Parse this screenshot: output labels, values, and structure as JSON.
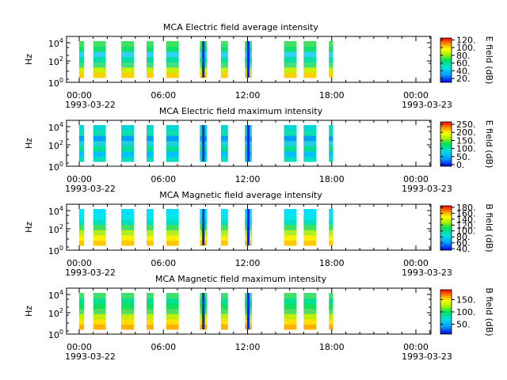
{
  "chart_data": [
    {
      "type": "heatmap",
      "title": "MCA  Electric field average intensity",
      "ylabel": "Hz",
      "colorbar_label": "E field (dB)",
      "colorbar_ticks": [
        "20.",
        "40.",
        "60.",
        "80.",
        "100.",
        "120."
      ],
      "colorbar_range": [
        10,
        125
      ],
      "y_ticks": [
        "10^4",
        "10^2",
        "10^0"
      ],
      "x_ticks": [
        {
          "time": "00:00",
          "date": "1993-03-22"
        },
        {
          "time": "06:00",
          "date": ""
        },
        {
          "time": "12:00",
          "date": ""
        },
        {
          "time": "18:00",
          "date": ""
        },
        {
          "time": "00:00",
          "date": "1993-03-23"
        }
      ],
      "data_intervals_hours": [
        [
          0.0,
          0.35
        ],
        [
          1.0,
          1.9
        ],
        [
          3.0,
          3.9
        ],
        [
          4.8,
          5.3
        ],
        [
          6.2,
          7.1
        ],
        [
          8.6,
          9.1
        ],
        [
          10.1,
          10.6
        ],
        [
          11.8,
          12.3
        ],
        [
          14.6,
          15.5
        ],
        [
          16.0,
          16.9
        ],
        [
          17.8,
          18.1
        ]
      ],
      "low_freq_level": "high (yellow-orange)",
      "high_freq_level": "medium (green)"
    },
    {
      "type": "heatmap",
      "title": "MCA  Electric field maximum intensity",
      "ylabel": "Hz",
      "colorbar_label": "E field (dB)",
      "colorbar_ticks": [
        "0.",
        "50.",
        "100.",
        "150.",
        "200.",
        "250."
      ],
      "colorbar_range": [
        -10,
        265
      ],
      "y_ticks": [
        "10^4",
        "10^2",
        "10^0"
      ],
      "x_ticks": [
        {
          "time": "00:00",
          "date": "1993-03-22"
        },
        {
          "time": "06:00",
          "date": ""
        },
        {
          "time": "12:00",
          "date": ""
        },
        {
          "time": "18:00",
          "date": ""
        },
        {
          "time": "00:00",
          "date": "1993-03-23"
        }
      ],
      "data_intervals_hours": [
        [
          0.0,
          0.35
        ],
        [
          1.0,
          1.9
        ],
        [
          3.0,
          3.9
        ],
        [
          4.8,
          5.3
        ],
        [
          6.2,
          7.1
        ],
        [
          8.6,
          9.1
        ],
        [
          10.1,
          10.6
        ],
        [
          11.8,
          12.3
        ],
        [
          14.6,
          15.5
        ],
        [
          16.0,
          16.9
        ],
        [
          17.8,
          18.1
        ]
      ],
      "low_freq_level": "medium (cyan-green)",
      "high_freq_level": "low-medium (cyan-blue)"
    },
    {
      "type": "heatmap",
      "title": "MCA  Magnetic field average intensity",
      "ylabel": "Hz",
      "colorbar_label": "B field (dB)",
      "colorbar_ticks": [
        "40.",
        "60.",
        "80.",
        "100.",
        "120.",
        "140.",
        "160.",
        "180."
      ],
      "colorbar_range": [
        35,
        185
      ],
      "y_ticks": [
        "10^4",
        "10^2",
        "10^0"
      ],
      "x_ticks": [
        {
          "time": "00:00",
          "date": "1993-03-22"
        },
        {
          "time": "06:00",
          "date": ""
        },
        {
          "time": "12:00",
          "date": ""
        },
        {
          "time": "18:00",
          "date": ""
        },
        {
          "time": "00:00",
          "date": "1993-03-23"
        }
      ],
      "data_intervals_hours": [
        [
          0.0,
          0.35
        ],
        [
          1.0,
          1.9
        ],
        [
          3.0,
          3.9
        ],
        [
          4.8,
          5.3
        ],
        [
          6.2,
          7.1
        ],
        [
          8.6,
          9.1
        ],
        [
          10.1,
          10.6
        ],
        [
          11.8,
          12.3
        ],
        [
          14.6,
          15.5
        ],
        [
          16.0,
          16.9
        ],
        [
          17.8,
          18.1
        ]
      ],
      "low_freq_level": "high (yellow-orange)",
      "high_freq_level": "low (cyan)"
    },
    {
      "type": "heatmap",
      "title": "MCA  Magnetic field maximum intensity",
      "ylabel": "Hz",
      "colorbar_label": "B field (dB)",
      "colorbar_ticks": [
        "50.",
        "100.",
        "150."
      ],
      "colorbar_range": [
        10,
        190
      ],
      "y_ticks": [
        "10^4",
        "10^2",
        "10^0"
      ],
      "x_ticks": [
        {
          "time": "00:00",
          "date": "1993-03-22"
        },
        {
          "time": "06:00",
          "date": ""
        },
        {
          "time": "12:00",
          "date": ""
        },
        {
          "time": "18:00",
          "date": ""
        },
        {
          "time": "00:00",
          "date": "1993-03-23"
        }
      ],
      "data_intervals_hours": [
        [
          0.0,
          0.35
        ],
        [
          1.0,
          1.9
        ],
        [
          3.0,
          3.9
        ],
        [
          4.8,
          5.3
        ],
        [
          6.2,
          7.1
        ],
        [
          8.6,
          9.1
        ],
        [
          10.1,
          10.6
        ],
        [
          11.8,
          12.3
        ],
        [
          14.6,
          15.5
        ],
        [
          16.0,
          16.9
        ],
        [
          17.8,
          18.1
        ]
      ],
      "low_freq_level": "high (yellow-orange)",
      "high_freq_level": "medium (green)"
    }
  ]
}
